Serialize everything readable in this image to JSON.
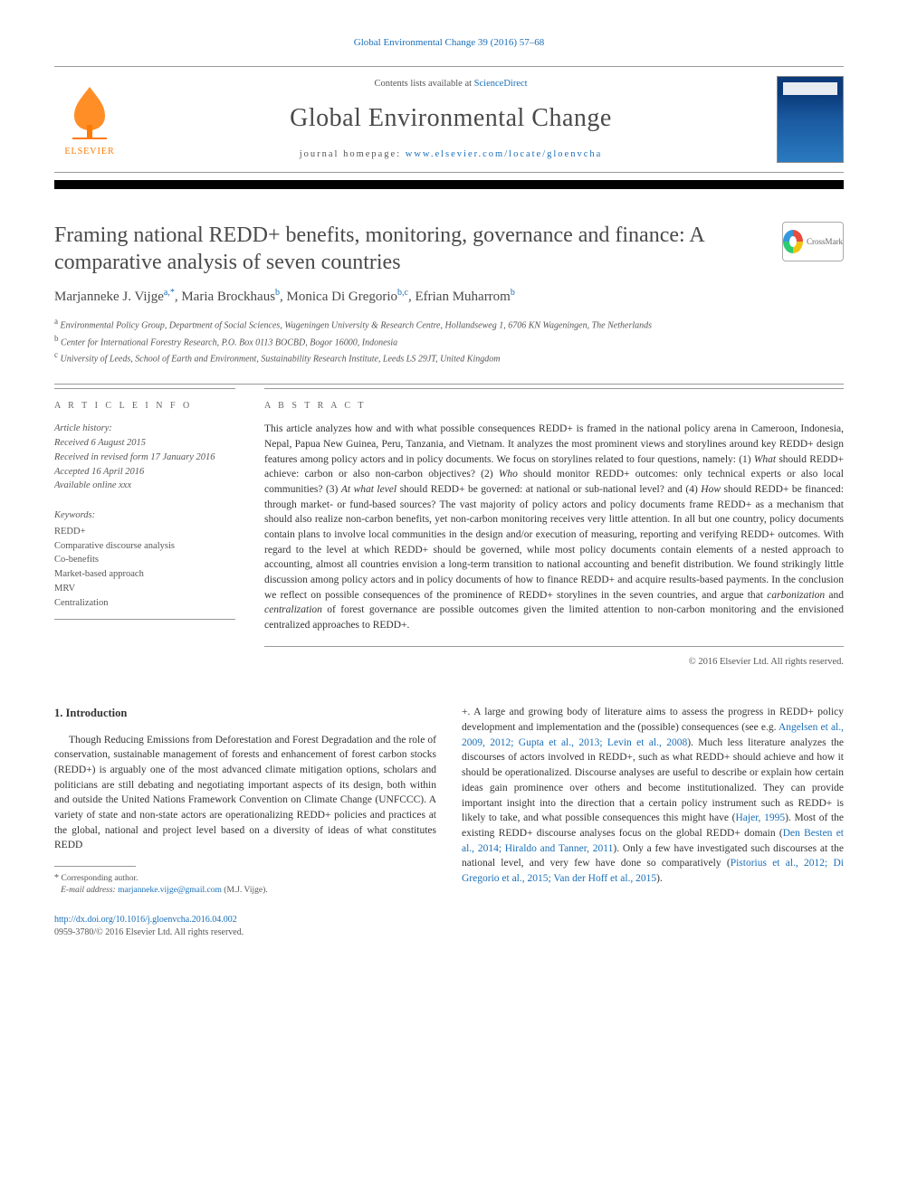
{
  "top_citation": "Global Environmental Change 39 (2016) 57–68",
  "header": {
    "contents_prefix": "Contents lists available at ",
    "contents_link": "ScienceDirect",
    "journal": "Global Environmental Change",
    "homepage_prefix": "journal homepage: ",
    "homepage_url": "www.elsevier.com/locate/gloenvcha"
  },
  "crossmark_label": "CrossMark",
  "title": "Framing national REDD+ benefits, monitoring, governance and finance: A comparative analysis of seven countries",
  "authors_html": "Marjanneke J. Vijge|a,*|, Maria Brockhaus|b|, Monica Di Gregorio|b,c|, Efrian Muharrom|b|",
  "affiliations": [
    {
      "sup": "a",
      "text": "Environmental Policy Group, Department of Social Sciences, Wageningen University & Research Centre, Hollandseweg 1, 6706 KN Wageningen, The Netherlands"
    },
    {
      "sup": "b",
      "text": "Center for International Forestry Research, P.O. Box 0113 BOCBD, Bogor 16000, Indonesia"
    },
    {
      "sup": "c",
      "text": "University of Leeds, School of Earth and Environment, Sustainability Research Institute, Leeds LS 29JT, United Kingdom"
    }
  ],
  "info": {
    "heading": "A R T I C L E  I N F O",
    "history_label": "Article history:",
    "history": [
      "Received 6 August 2015",
      "Received in revised form 17 January 2016",
      "Accepted 16 April 2016",
      "Available online xxx"
    ],
    "keywords_label": "Keywords:",
    "keywords": [
      "REDD+",
      "Comparative discourse analysis",
      "Co-benefits",
      "Market-based approach",
      "MRV",
      "Centralization"
    ]
  },
  "abstract": {
    "heading": "A B S T R A C T",
    "text": "This article analyzes how and with what possible consequences REDD+ is framed in the national policy arena in Cameroon, Indonesia, Nepal, Papua New Guinea, Peru, Tanzania, and Vietnam. It analyzes the most prominent views and storylines around key REDD+ design features among policy actors and in policy documents. We focus on storylines related to four questions, namely: (1) What should REDD+ achieve: carbon or also non-carbon objectives? (2) Who should monitor REDD+ outcomes: only technical experts or also local communities? (3) At what level should REDD+ be governed: at national or sub-national level? and (4) How should REDD+ be financed: through market- or fund-based sources? The vast majority of policy actors and policy documents frame REDD+ as a mechanism that should also realize non-carbon benefits, yet non-carbon monitoring receives very little attention. In all but one country, policy documents contain plans to involve local communities in the design and/or execution of measuring, reporting and verifying REDD+ outcomes. With regard to the level at which REDD+ should be governed, while most policy documents contain elements of a nested approach to accounting, almost all countries envision a long-term transition to national accounting and benefit distribution. We found strikingly little discussion among policy actors and in policy documents of how to finance REDD+ and acquire results-based payments. In the conclusion we reflect on possible consequences of the prominence of REDD+ storylines in the seven countries, and argue that carbonization and centralization of forest governance are possible outcomes given the limited attention to non-carbon monitoring and the envisioned centralized approaches to REDD+.",
    "copyright": "© 2016 Elsevier Ltd. All rights reserved."
  },
  "intro": {
    "heading": "1. Introduction",
    "col1": "Though Reducing Emissions from Deforestation and Forest Degradation and the role of conservation, sustainable management of forests and enhancement of forest carbon stocks (REDD+) is arguably one of the most advanced climate mitigation options, scholars and politicians are still debating and negotiating important aspects of its design, both within and outside the United Nations Framework Convention on Climate Change (UNFCCC). A variety of state and non-state actors are operationalizing REDD+ policies and practices at the global, national and project level based on a diversity of ideas of what constitutes REDD",
    "col2_part1": "+. A large and growing body of literature aims to assess the progress in REDD+ policy development and implementation and the (possible) consequences (see e.g. ",
    "col2_link1": "Angelsen et al., 2009, 2012; Gupta et al., 2013; Levin et al., 2008",
    "col2_part2": "). Much less literature analyzes the discourses of actors involved in REDD+, such as what REDD+ should achieve and how it should be operationalized. Discourse analyses are useful to describe or explain how certain ideas gain prominence over others and become institutionalized. They can provide important insight into the direction that a certain policy instrument such as REDD+ is likely to take, and what possible consequences this might have (",
    "col2_link2": "Hajer, 1995",
    "col2_part3": "). Most of the existing REDD+ discourse analyses focus on the global REDD+ domain (",
    "col2_link3": "Den Besten et al., 2014; Hiraldo and Tanner, 2011",
    "col2_part4": "). Only a few have investigated such discourses at the national level, and very few have done so comparatively (",
    "col2_link4": "Pistorius et al., 2012; Di Gregorio et al., 2015; Van der Hoff et al., 2015",
    "col2_part5": ")."
  },
  "footnote": {
    "corresponding": "Corresponding author.",
    "email_label": "E-mail address:",
    "email": "marjanneke.vijge@gmail.com",
    "email_suffix": " (M.J. Vijge)."
  },
  "bottom": {
    "doi": "http://dx.doi.org/10.1016/j.gloenvcha.2016.04.002",
    "issn_line": "0959-3780/© 2016 Elsevier Ltd. All rights reserved."
  },
  "colors": {
    "link": "#1a6fb8",
    "text": "#333333",
    "muted": "#555555",
    "rule": "#999999",
    "elsevier_orange": "#ff7a00"
  }
}
